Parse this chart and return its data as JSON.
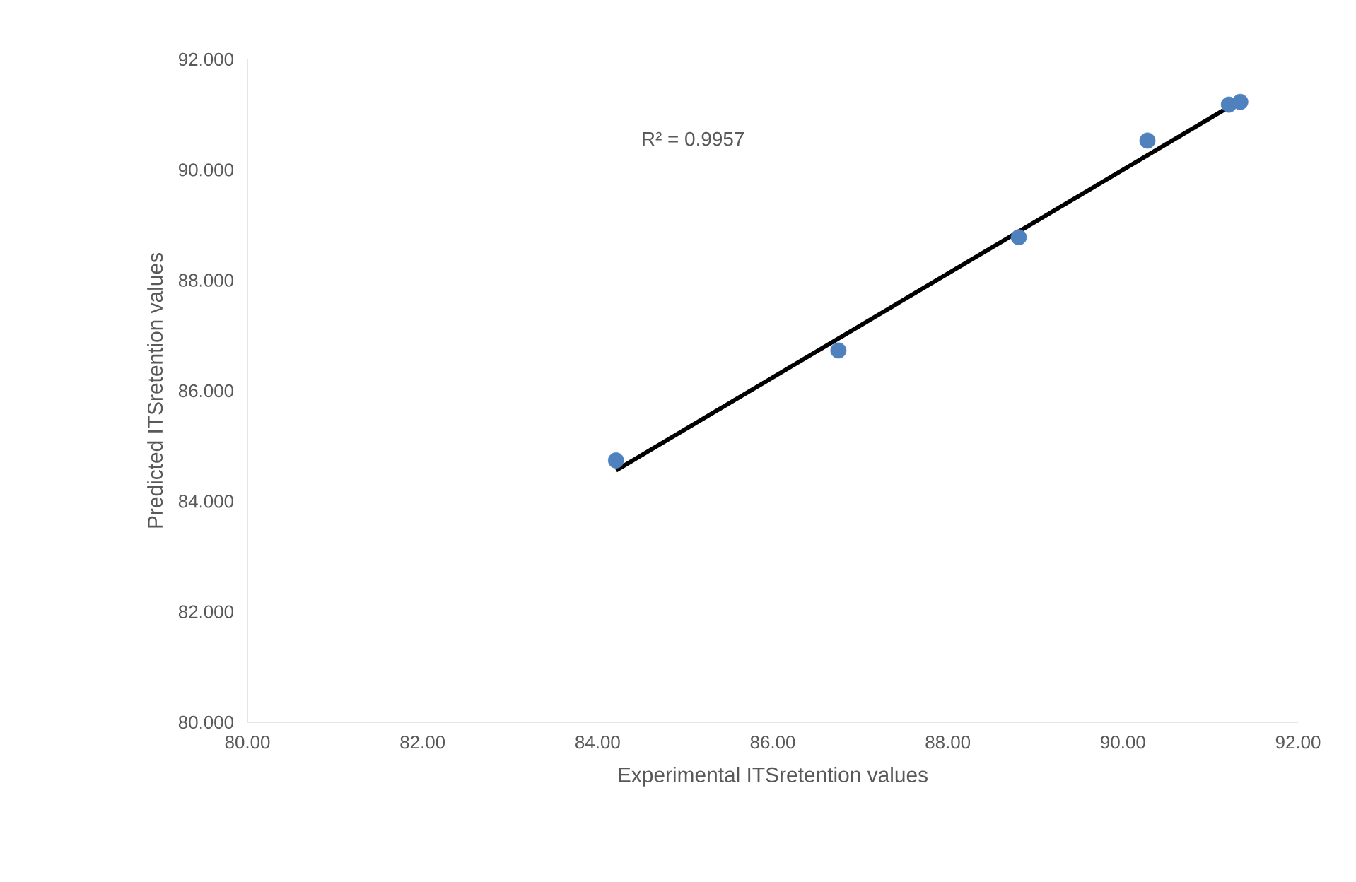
{
  "chart_data": {
    "type": "scatter",
    "xlabel": "Experimental ITSretention values",
    "ylabel": "Predicted ITSretention values",
    "annotations": [
      "R² = 0.9957"
    ],
    "series": [
      {
        "marker": "circle",
        "color": "#4e81bd",
        "x": [
          84.21,
          86.75,
          88.81,
          90.28,
          91.21,
          91.34
        ],
        "values": [
          84.74,
          86.73,
          88.78,
          90.53,
          91.18,
          91.23
        ]
      },
      {
        "type": "line",
        "marker": "none",
        "color": "#000000",
        "x": [
          84.21,
          91.34
        ],
        "values": [
          84.56,
          91.26
        ]
      }
    ],
    "xlim": [
      80,
      92
    ],
    "ylim": [
      80,
      92
    ],
    "xticks": [
      {
        "value": 80,
        "label": "80.00"
      },
      {
        "value": 82,
        "label": "82.00"
      },
      {
        "value": 84,
        "label": "84.00"
      },
      {
        "value": 86,
        "label": "86.00"
      },
      {
        "value": 88,
        "label": "88.00"
      },
      {
        "value": 90,
        "label": "90.00"
      },
      {
        "value": 92,
        "label": "92.00"
      }
    ],
    "yticks": [
      {
        "value": 80,
        "label": "80.000"
      },
      {
        "value": 82,
        "label": "82.000"
      },
      {
        "value": 84,
        "label": "84.000"
      },
      {
        "value": 86,
        "label": "86.000"
      },
      {
        "value": 88,
        "label": "88.000"
      },
      {
        "value": 90,
        "label": "90.000"
      },
      {
        "value": 92,
        "label": "92.000"
      }
    ],
    "grid": false
  }
}
